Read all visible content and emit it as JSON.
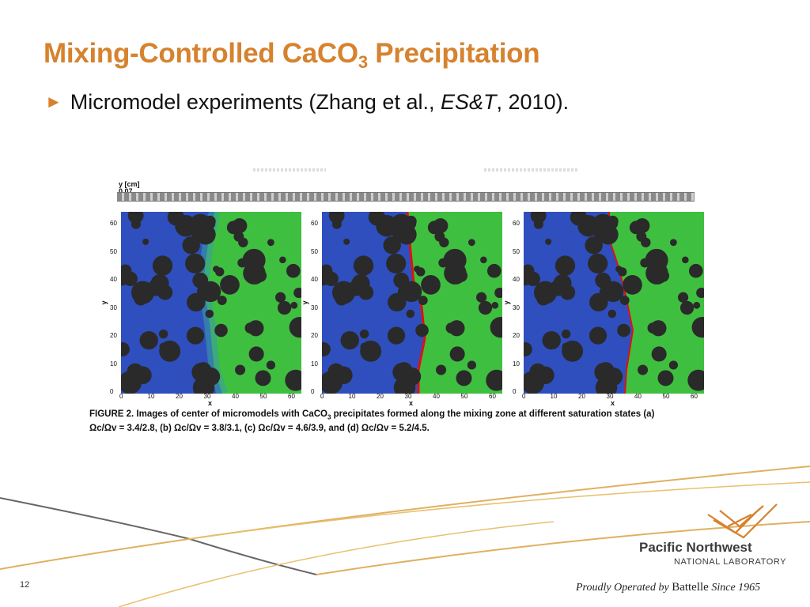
{
  "slide": {
    "title_main": "Mixing-Controlled CaCO",
    "title_sub": "3",
    "title_rest": " Precipitation",
    "bullet_pre": "Micromodel experiments (Zhang et al., ",
    "bullet_italic": "ES&T",
    "bullet_post": ", 2010).",
    "page_number": "12"
  },
  "figure": {
    "y_top_label": "y [cm]",
    "y_top_value": "0.07",
    "axis_x": "x",
    "axis_y": "y",
    "y_ticks": [
      "60",
      "50",
      "40",
      "30",
      "20",
      "10",
      "0"
    ],
    "x_ticks": [
      "0",
      "10",
      "20",
      "30",
      "40",
      "50",
      "60"
    ],
    "caption_l1a": "FIGURE 2.  Images of center of micromodels with CaCO",
    "caption_l1sub": "3",
    "caption_l1b": " precipitates formed along the mixing zone at different saturation states (a)",
    "caption_l2": "Ωc/Ωv = 3.4/2.8, (b) Ωc/Ωv = 3.8/3.1, (c) Ωc/Ωv = 4.6/3.9, and (d) Ωc/Ωv = 5.2/4.5.",
    "colors": {
      "left_fluid": "#2f4fbf",
      "right_fluid": "#3fbf3f",
      "grains": "#2a2a2a",
      "precipitate": "#e01010"
    }
  },
  "footer": {
    "org_name": "Pacific Northwest",
    "org_sub": "NATIONAL LABORATORY",
    "tagline_italic1": "Proudly Operated by ",
    "tagline_brand": "Battelle",
    "tagline_italic2": " Since 1965",
    "accent": "#d6822e"
  }
}
